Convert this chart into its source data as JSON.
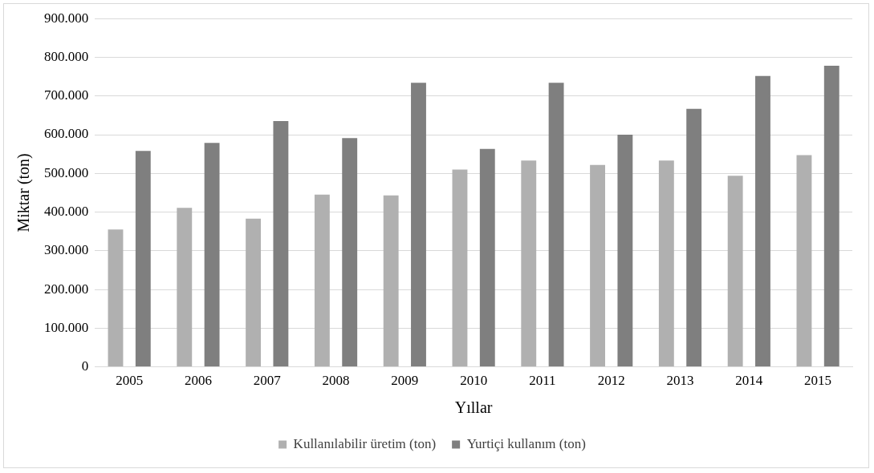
{
  "chart_data": {
    "type": "bar",
    "xlabel": "Yıllar",
    "ylabel": "Miktar (ton)",
    "categories": [
      "2005",
      "2006",
      "2007",
      "2008",
      "2009",
      "2010",
      "2011",
      "2012",
      "2013",
      "2014",
      "2015"
    ],
    "series": [
      {
        "name": "Kullanılabilir üretim (ton)",
        "color": "#b0b0b0",
        "values": [
          355000,
          411000,
          383000,
          445000,
          443000,
          510000,
          533000,
          522000,
          533000,
          494000,
          547000
        ]
      },
      {
        "name": "Yurtiçi kullanım (ton)",
        "color": "#7f7f7f",
        "values": [
          558000,
          579000,
          635000,
          591000,
          734000,
          563000,
          734000,
          600000,
          667000,
          752000,
          778000
        ]
      }
    ],
    "ylim": [
      0,
      900000
    ],
    "yticks": [
      0,
      {
        "value": 100000,
        "label": "100.000"
      },
      {
        "value": 200000,
        "label": "200.000"
      },
      {
        "value": 300000,
        "label": "300.000"
      },
      {
        "value": 400000,
        "label": "400.000"
      },
      {
        "value": 500000,
        "label": "500.000"
      },
      {
        "value": 600000,
        "label": "600.000"
      },
      {
        "value": 700000,
        "label": "700.000"
      },
      {
        "value": 800000,
        "label": "800.000"
      },
      {
        "value": 900000,
        "label": "900.000"
      }
    ],
    "grid": "y",
    "legend": "bottom"
  }
}
